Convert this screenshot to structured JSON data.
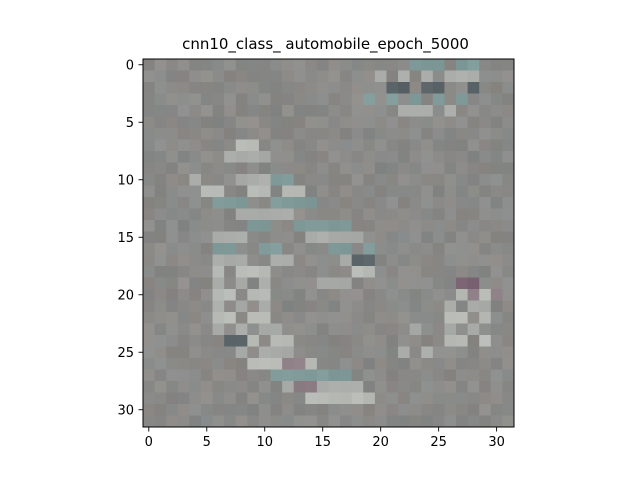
{
  "chart_data": {
    "type": "heatmap",
    "title": "cnn10_class_ automobile_epoch_5000",
    "xlabel": "",
    "ylabel": "",
    "grid": false,
    "image_size": [
      32,
      32
    ],
    "xlim": [
      -0.5,
      31.5
    ],
    "ylim": [
      31.5,
      -0.5
    ],
    "x_ticks": [
      0,
      5,
      10,
      15,
      20,
      25,
      30
    ],
    "y_ticks": [
      0,
      5,
      10,
      15,
      20,
      25,
      30
    ],
    "x_tick_labels": [
      "0",
      "5",
      "10",
      "15",
      "20",
      "25",
      "30"
    ],
    "y_tick_labels": [
      "0",
      "5",
      "10",
      "15",
      "20",
      "25",
      "30"
    ],
    "base_color": "#8a8a88",
    "colors": {
      "gray": "#8a8a88",
      "light": "#a9aca9",
      "teal": "#7f9a98",
      "dark": "#5a6468",
      "purple": "#7c6474",
      "mauve": "#8e7e86",
      "pale": "#b8bbb6"
    },
    "highlight_pixels": [
      {
        "row": 0,
        "cols": [
          23,
          24,
          25,
          27,
          28
        ],
        "tone": "teal"
      },
      {
        "row": 1,
        "cols": [
          20,
          22,
          24,
          26,
          27,
          28
        ],
        "tone": "light"
      },
      {
        "row": 2,
        "cols": [
          21,
          22,
          24,
          25,
          28
        ],
        "tone": "dark"
      },
      {
        "row": 3,
        "cols": [
          19,
          21,
          23,
          25,
          27
        ],
        "tone": "teal"
      },
      {
        "row": 4,
        "cols": [
          22,
          23,
          24,
          26
        ],
        "tone": "light"
      },
      {
        "row": 7,
        "cols": [
          8,
          9
        ],
        "tone": "pale"
      },
      {
        "row": 8,
        "cols": [
          7,
          8,
          9,
          10
        ],
        "tone": "light"
      },
      {
        "row": 10,
        "cols": [
          4,
          8,
          9,
          10
        ],
        "tone": "light"
      },
      {
        "row": 10,
        "cols": [
          11,
          12
        ],
        "tone": "teal"
      },
      {
        "row": 11,
        "cols": [
          5,
          6,
          9,
          10,
          12,
          13
        ],
        "tone": "pale"
      },
      {
        "row": 12,
        "cols": [
          6,
          7,
          8,
          11,
          12,
          13,
          14
        ],
        "tone": "teal"
      },
      {
        "row": 13,
        "cols": [
          8,
          9,
          10,
          11,
          12
        ],
        "tone": "light"
      },
      {
        "row": 14,
        "cols": [
          9,
          10,
          13,
          14,
          15,
          16,
          17
        ],
        "tone": "teal"
      },
      {
        "row": 15,
        "cols": [
          6,
          7,
          8,
          14,
          15,
          16,
          17,
          18
        ],
        "tone": "light"
      },
      {
        "row": 16,
        "cols": [
          6,
          7,
          10,
          11,
          16,
          17,
          19
        ],
        "tone": "teal"
      },
      {
        "row": 17,
        "cols": [
          6,
          7,
          8,
          11,
          12,
          17,
          18
        ],
        "tone": "light"
      },
      {
        "row": 17,
        "cols": [
          18,
          19
        ],
        "tone": "dark"
      },
      {
        "row": 18,
        "cols": [
          6,
          8,
          9,
          10,
          18,
          19
        ],
        "tone": "pale"
      },
      {
        "row": 19,
        "cols": [
          6,
          8,
          10,
          15,
          16,
          17
        ],
        "tone": "light"
      },
      {
        "row": 19,
        "cols": [
          27,
          28
        ],
        "tone": "purple"
      },
      {
        "row": 20,
        "cols": [
          6,
          7,
          9,
          10,
          27,
          29
        ],
        "tone": "pale"
      },
      {
        "row": 20,
        "cols": [
          28,
          30
        ],
        "tone": "mauve"
      },
      {
        "row": 21,
        "cols": [
          6,
          8,
          10,
          26,
          28,
          29
        ],
        "tone": "light"
      },
      {
        "row": 22,
        "cols": [
          6,
          7,
          9,
          10,
          26,
          27,
          29
        ],
        "tone": "pale"
      },
      {
        "row": 23,
        "cols": [
          6,
          8,
          10,
          11,
          23,
          26,
          28
        ],
        "tone": "light"
      },
      {
        "row": 24,
        "cols": [
          7,
          9,
          11,
          12,
          26,
          27,
          29
        ],
        "tone": "pale"
      },
      {
        "row": 24,
        "cols": [
          7,
          8
        ],
        "tone": "dark"
      },
      {
        "row": 25,
        "cols": [
          8,
          10,
          11,
          12,
          22,
          24
        ],
        "tone": "light"
      },
      {
        "row": 26,
        "cols": [
          9,
          10,
          11,
          13,
          14
        ],
        "tone": "pale"
      },
      {
        "row": 26,
        "cols": [
          12,
          13
        ],
        "tone": "mauve"
      },
      {
        "row": 27,
        "cols": [
          11,
          12,
          13,
          14,
          15,
          16,
          17
        ],
        "tone": "teal"
      },
      {
        "row": 28,
        "cols": [
          12,
          13,
          14,
          15,
          16,
          17,
          18
        ],
        "tone": "light"
      },
      {
        "row": 28,
        "cols": [
          13,
          14
        ],
        "tone": "mauve"
      },
      {
        "row": 29,
        "cols": [
          14,
          15,
          16,
          17,
          18,
          19
        ],
        "tone": "pale"
      }
    ]
  }
}
